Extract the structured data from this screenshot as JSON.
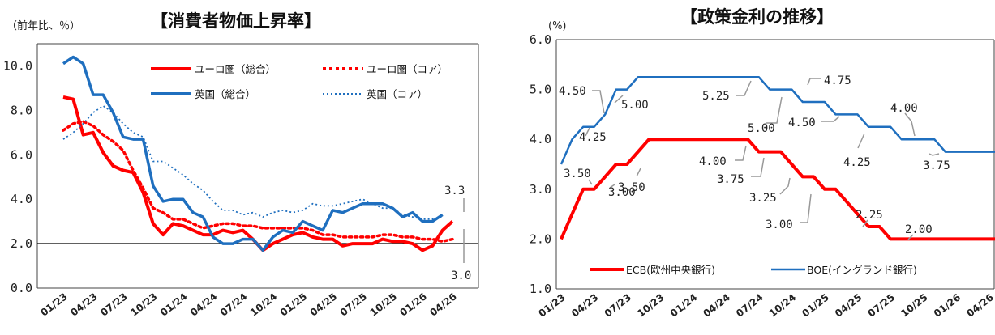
{
  "chart_data": [
    {
      "type": "line",
      "title": "【消費者物価上昇率】",
      "unit_label": "（前年比、％）",
      "ylim": [
        0,
        11
      ],
      "yticks": [
        "0.0",
        "2.0",
        "4.0",
        "6.0",
        "8.0",
        "10.0"
      ],
      "xticks": [
        "01/23",
        "04/23",
        "07/23",
        "10/23",
        "01/24",
        "04/24",
        "07/24",
        "10/24",
        "01/25",
        "04/25",
        "07/25",
        "10/25",
        "01/26",
        "04/26"
      ],
      "reference_line": 2.0,
      "legend_position": "top-right",
      "series": [
        {
          "name": "ユーロ圏（総合）",
          "color": "#ff0000",
          "style": "solid",
          "start": 0,
          "values": [
            8.6,
            8.5,
            6.9,
            7.0,
            6.1,
            5.5,
            5.3,
            5.2,
            4.3,
            2.9,
            2.4,
            2.9,
            2.8,
            2.6,
            2.4,
            2.4,
            2.6,
            2.5,
            2.6,
            2.2,
            1.7,
            2.0,
            2.2,
            2.4,
            2.5,
            2.3,
            2.2,
            2.2,
            1.9,
            2.0,
            2.0,
            2.0,
            2.2,
            2.1,
            2.1,
            2.0,
            1.7,
            1.9,
            2.6,
            3.0
          ]
        },
        {
          "name": "ユーロ圏（コア）",
          "color": "#ff0000",
          "style": "dotted",
          "start": 0,
          "values": [
            7.1,
            7.4,
            7.5,
            7.3,
            6.9,
            6.6,
            6.2,
            5.3,
            4.5,
            3.6,
            3.4,
            3.1,
            3.1,
            2.9,
            2.7,
            2.8,
            2.9,
            2.9,
            2.8,
            2.8,
            2.7,
            2.7,
            2.7,
            2.7,
            2.7,
            2.6,
            2.4,
            2.4,
            2.3,
            2.3,
            2.3,
            2.3,
            2.4,
            2.4,
            2.3,
            2.3,
            2.2,
            2.2,
            2.1,
            2.2
          ]
        },
        {
          "name": "英国（総合）",
          "color": "#1f6fbf",
          "style": "solid",
          "start": 0,
          "values": [
            10.1,
            10.4,
            10.1,
            8.7,
            8.7,
            7.9,
            6.8,
            6.7,
            6.7,
            4.6,
            3.9,
            4.0,
            4.0,
            3.4,
            3.2,
            2.3,
            2.0,
            2.0,
            2.2,
            2.2,
            1.7,
            2.3,
            2.6,
            2.5,
            3.0,
            2.8,
            2.6,
            3.5,
            3.4,
            3.6,
            3.8,
            3.8,
            3.8,
            3.6,
            3.2,
            3.4,
            3.0,
            3.0,
            3.3
          ]
        },
        {
          "name": "英国（コア）",
          "color": "#1f6fbf",
          "style": "dotted",
          "start": 0,
          "values": [
            6.7,
            7.0,
            7.4,
            7.9,
            8.2,
            7.9,
            7.4,
            7.0,
            6.8,
            5.7,
            5.7,
            5.4,
            5.1,
            4.7,
            4.4,
            3.9,
            3.5,
            3.5,
            3.3,
            3.4,
            3.2,
            3.4,
            3.5,
            3.4,
            3.5,
            3.8,
            3.7,
            3.7,
            3.8,
            3.9,
            4.0,
            3.8,
            3.6,
            3.6,
            3.3,
            3.2,
            3.1,
            3.1,
            3.2
          ]
        }
      ],
      "annotations": [
        "3.3",
        "3.0"
      ]
    },
    {
      "type": "line",
      "title": "【政策金利の推移】",
      "unit_label": "(%)",
      "ylim": [
        1.0,
        6.0
      ],
      "yticks": [
        "1.0",
        "2.0",
        "3.0",
        "4.0",
        "5.0",
        "6.0"
      ],
      "xticks": [
        "01/23",
        "04/23",
        "07/23",
        "10/23",
        "01/24",
        "04/24",
        "07/24",
        "10/24",
        "01/25",
        "04/25",
        "07/25",
        "10/25",
        "01/26",
        "04/26"
      ],
      "legend_position": "bottom",
      "series": [
        {
          "name": "ECB(欧州中央銀行)",
          "color": "#ff0000",
          "style": "solid",
          "start": 0,
          "values": [
            2.0,
            2.5,
            3.0,
            3.0,
            3.25,
            3.5,
            3.5,
            3.75,
            4.0,
            4.0,
            4.0,
            4.0,
            4.0,
            4.0,
            4.0,
            4.0,
            4.0,
            4.0,
            3.75,
            3.75,
            3.75,
            3.5,
            3.25,
            3.25,
            3.0,
            3.0,
            2.75,
            2.5,
            2.25,
            2.25,
            2.0,
            2.0,
            2.0,
            2.0,
            2.0,
            2.0,
            2.0,
            2.0,
            2.0,
            2.0,
            2.0
          ]
        },
        {
          "name": "BOE(イングランド銀行)",
          "color": "#1f6fbf",
          "style": "solid",
          "start": 0,
          "values": [
            3.5,
            4.0,
            4.25,
            4.25,
            4.5,
            5.0,
            5.0,
            5.25,
            5.25,
            5.25,
            5.25,
            5.25,
            5.25,
            5.25,
            5.25,
            5.25,
            5.25,
            5.25,
            5.25,
            5.0,
            5.0,
            5.0,
            4.75,
            4.75,
            4.75,
            4.5,
            4.5,
            4.5,
            4.25,
            4.25,
            4.25,
            4.0,
            4.0,
            4.0,
            4.0,
            3.75,
            3.75,
            3.75,
            3.75,
            3.75,
            3.75
          ]
        }
      ],
      "annotations": [
        "4.50",
        "4.25",
        "5.00",
        "5.25",
        "5.00",
        "4.75",
        "4.50",
        "4.00",
        "4.25",
        "3.75",
        "3.50",
        "3.00",
        "3.50",
        "4.00",
        "3.75",
        "3.25",
        "3.00",
        "2.25",
        "2.00"
      ]
    }
  ]
}
